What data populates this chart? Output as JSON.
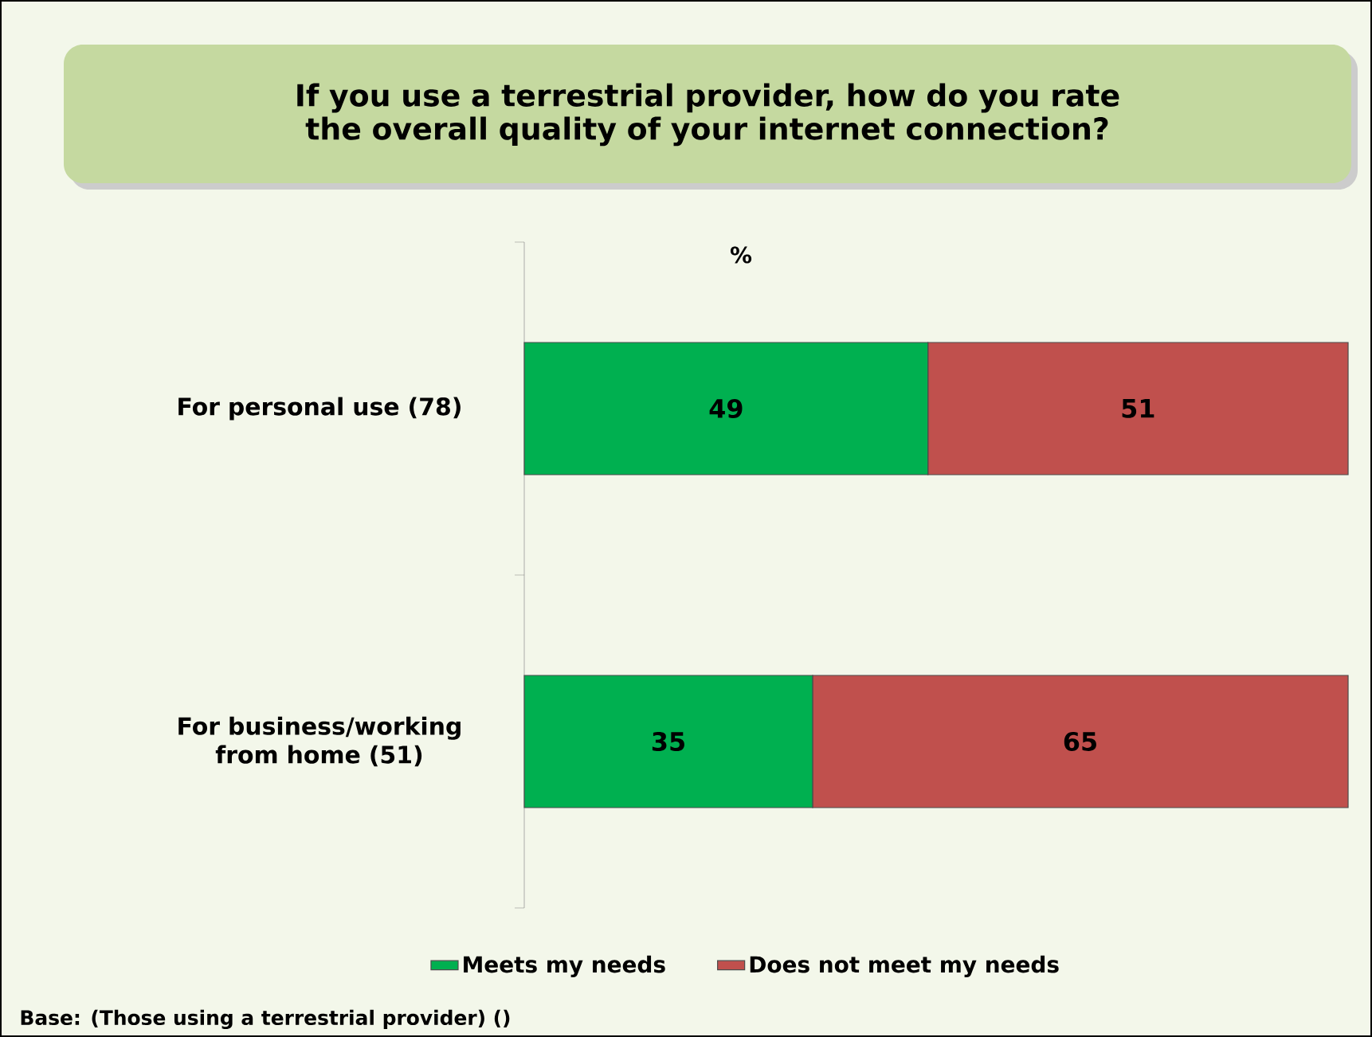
{
  "chart_data": {
    "type": "bar",
    "orientation": "horizontal",
    "stacked": true,
    "title": "If you use a terrestrial provider, how do you rate the overall quality of your internet connection?",
    "categories": [
      "For personal use (78)",
      "For business/working from home (51)"
    ],
    "series": [
      {
        "name": "Meets my needs",
        "color": "#00b050",
        "values": [
          49,
          35
        ]
      },
      {
        "name": "Does not meet my needs",
        "color": "#c0504d",
        "values": [
          51,
          65
        ]
      }
    ],
    "tick_labels": "y",
    "data_labels": true,
    "legend": "bottom",
    "annotations": [
      "%",
      "Base: (Those using a terrestrial provider) ()"
    ]
  }
}
